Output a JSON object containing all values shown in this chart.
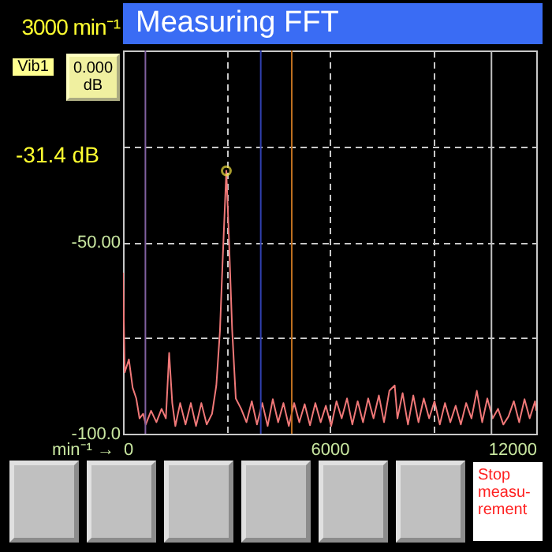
{
  "chart_data": {
    "type": "line",
    "title": "Measuring FFT",
    "xlabel": "min⁻¹ →",
    "annotations": [
      "3000 min⁻¹",
      "Vib1",
      "0.000 dB",
      "-31.4 dB",
      "Stop measu-rement"
    ],
    "xlim": [
      0,
      12000
    ],
    "ylim": [
      -100,
      0
    ],
    "xticks": [
      0,
      {
        "value": 3000,
        "label": null
      },
      6000,
      {
        "value": 9000,
        "label": null
      },
      12000
    ],
    "yticks": [
      {
        "value": -100,
        "label": "-100.0"
      },
      {
        "value": -75,
        "label": null
      },
      {
        "value": -50,
        "label": "-50.00"
      },
      {
        "value": -25,
        "label": null
      }
    ],
    "grid": true,
    "ref_lines": [
      {
        "axis": "x",
        "value": 650,
        "color": "#8060a0",
        "line_style": "solid"
      },
      {
        "axis": "x",
        "value": 4000,
        "color": "#3040b0",
        "line_style": "solid"
      },
      {
        "axis": "x",
        "value": 4900,
        "color": "#c07020",
        "line_style": "solid"
      },
      {
        "axis": "x",
        "value": 10700,
        "color": "#c0c0c0",
        "line_style": "solid"
      }
    ],
    "series": [
      {
        "type": "line",
        "color": "#f07878",
        "x": [
          0,
          50,
          170,
          280,
          385,
          480,
          585,
          660,
          815,
          970,
          1120,
          1245,
          1340,
          1430,
          1520,
          1660,
          1815,
          1970,
          2120,
          2275,
          2430,
          2585,
          2710,
          2815,
          2890,
          3000,
          3075,
          3170,
          3275,
          3430,
          3585,
          3740,
          3890,
          4045,
          4200,
          4350,
          4505,
          4660,
          4815,
          4970,
          5120,
          5275,
          5430,
          5585,
          5740,
          5890,
          6045,
          6200,
          6350,
          6505,
          6660,
          6815,
          6970,
          7120,
          7275,
          7430,
          7580,
          7735,
          7890,
          7970,
          8120,
          8275,
          8430,
          8580,
          8735,
          8890,
          9045,
          9200,
          9350,
          9505,
          9660,
          9810,
          9965,
          10120,
          10275,
          10430,
          10580,
          10735,
          10890,
          11045,
          11195,
          11350,
          11505,
          11660,
          11810,
          11965,
          12000
        ],
        "values": [
          -58,
          -84,
          -80.6,
          -88,
          -90.8,
          -96,
          -94.8,
          -97.6,
          -94,
          -97,
          -93.5,
          -96,
          -78.9,
          -92,
          -98,
          -92,
          -97.6,
          -92,
          -98,
          -92,
          -97.6,
          -94.8,
          -87.4,
          -73.2,
          -55.6,
          -31.4,
          -48.8,
          -73,
          -90.8,
          -93.5,
          -97,
          -91.5,
          -97.6,
          -92,
          -98,
          -91,
          -97,
          -92,
          -98,
          -92,
          -97,
          -92.3,
          -97.8,
          -92,
          -97,
          -92.7,
          -98,
          -91.5,
          -96,
          -90.8,
          -97.6,
          -91.5,
          -97,
          -90.8,
          -96,
          -90,
          -97,
          -88.8,
          -87.4,
          -96,
          -89.4,
          -97.6,
          -90,
          -97,
          -90.8,
          -96,
          -91.5,
          -97.6,
          -92,
          -97,
          -92.7,
          -97.6,
          -92,
          -96,
          -88.8,
          -97,
          -90.8,
          -96,
          -93.5,
          -97.6,
          -95.5,
          -91.5,
          -97,
          -91,
          -96,
          -91.5,
          -94
        ]
      },
      {
        "type": "scatter",
        "color": "#f0e040",
        "marker": "circle",
        "x": [
          3000
        ],
        "values": [
          -31.4
        ]
      }
    ]
  }
}
